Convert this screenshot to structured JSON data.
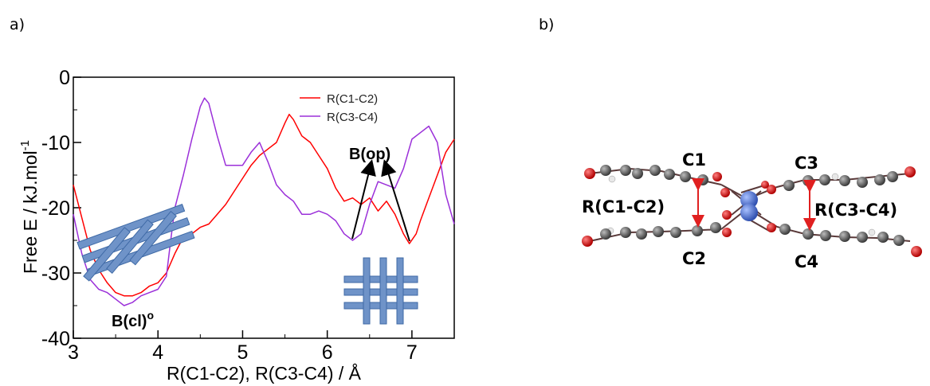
{
  "panels": {
    "a": "a)",
    "b": "b)"
  },
  "chart_data": {
    "type": "line",
    "xlabel": "R(C1-C2), R(C3-C4) / Å",
    "ylabel": "Free E / kJ.mol",
    "ylabel_superscript": "-1",
    "xlim": [
      3,
      7.5
    ],
    "ylim": [
      -40,
      0
    ],
    "x_ticks": [
      "3",
      "4",
      "5",
      "6",
      "7"
    ],
    "y_ticks": [
      "-40",
      "-30",
      "-20",
      "-10",
      "0"
    ],
    "legend_position": "top-right",
    "series": [
      {
        "name": "R(C1-C2)",
        "color": "#ff0000",
        "points": [
          [
            3.0,
            -16.5
          ],
          [
            3.1,
            -21.5
          ],
          [
            3.2,
            -26.5
          ],
          [
            3.3,
            -29.5
          ],
          [
            3.4,
            -31.5
          ],
          [
            3.5,
            -33.0
          ],
          [
            3.6,
            -33.5
          ],
          [
            3.7,
            -33.5
          ],
          [
            3.8,
            -33.0
          ],
          [
            3.9,
            -32.0
          ],
          [
            4.0,
            -31.5
          ],
          [
            4.1,
            -30.0
          ],
          [
            4.2,
            -27.0
          ],
          [
            4.3,
            -24.5
          ],
          [
            4.4,
            -24.0
          ],
          [
            4.5,
            -23.0
          ],
          [
            4.6,
            -22.5
          ],
          [
            4.7,
            -21.0
          ],
          [
            4.8,
            -19.5
          ],
          [
            4.9,
            -17.5
          ],
          [
            5.0,
            -15.5
          ],
          [
            5.1,
            -13.5
          ],
          [
            5.2,
            -12.0
          ],
          [
            5.3,
            -11.0
          ],
          [
            5.4,
            -10.0
          ],
          [
            5.5,
            -7.0
          ],
          [
            5.55,
            -5.7
          ],
          [
            5.6,
            -6.5
          ],
          [
            5.7,
            -9.0
          ],
          [
            5.8,
            -10.0
          ],
          [
            5.9,
            -12.0
          ],
          [
            6.0,
            -14.0
          ],
          [
            6.1,
            -17.0
          ],
          [
            6.2,
            -19.0
          ],
          [
            6.3,
            -18.5
          ],
          [
            6.4,
            -19.5
          ],
          [
            6.5,
            -18.5
          ],
          [
            6.6,
            -20.5
          ],
          [
            6.7,
            -19.0
          ],
          [
            6.8,
            -21.0
          ],
          [
            6.9,
            -24.0
          ],
          [
            6.97,
            -25.5
          ],
          [
            7.05,
            -24.0
          ],
          [
            7.1,
            -22.0
          ],
          [
            7.2,
            -18.5
          ],
          [
            7.3,
            -15.0
          ],
          [
            7.4,
            -11.5
          ],
          [
            7.5,
            -9.5
          ]
        ]
      },
      {
        "name": "R(C3-C4)",
        "color": "#9b30d9",
        "points": [
          [
            3.0,
            -21.0
          ],
          [
            3.1,
            -27.0
          ],
          [
            3.2,
            -31.0
          ],
          [
            3.3,
            -32.5
          ],
          [
            3.4,
            -33.0
          ],
          [
            3.5,
            -34.0
          ],
          [
            3.6,
            -35.0
          ],
          [
            3.7,
            -34.5
          ],
          [
            3.8,
            -33.5
          ],
          [
            3.9,
            -33.0
          ],
          [
            4.0,
            -32.5
          ],
          [
            4.1,
            -30.5
          ],
          [
            4.15,
            -25.0
          ],
          [
            4.2,
            -20.0
          ],
          [
            4.3,
            -15.0
          ],
          [
            4.4,
            -9.5
          ],
          [
            4.5,
            -4.5
          ],
          [
            4.55,
            -3.2
          ],
          [
            4.6,
            -4.0
          ],
          [
            4.7,
            -9.0
          ],
          [
            4.8,
            -13.5
          ],
          [
            4.9,
            -13.5
          ],
          [
            5.0,
            -13.5
          ],
          [
            5.1,
            -11.5
          ],
          [
            5.2,
            -10.0
          ],
          [
            5.3,
            -13.0
          ],
          [
            5.4,
            -16.5
          ],
          [
            5.5,
            -18.0
          ],
          [
            5.6,
            -19.0
          ],
          [
            5.7,
            -21.0
          ],
          [
            5.8,
            -21.0
          ],
          [
            5.9,
            -20.5
          ],
          [
            6.0,
            -21.0
          ],
          [
            6.1,
            -22.0
          ],
          [
            6.2,
            -24.0
          ],
          [
            6.3,
            -25.0
          ],
          [
            6.4,
            -24.0
          ],
          [
            6.5,
            -19.5
          ],
          [
            6.6,
            -16.0
          ],
          [
            6.7,
            -16.5
          ],
          [
            6.8,
            -17.0
          ],
          [
            6.9,
            -14.0
          ],
          [
            7.0,
            -9.5
          ],
          [
            7.1,
            -8.5
          ],
          [
            7.2,
            -7.5
          ],
          [
            7.3,
            -10.0
          ],
          [
            7.4,
            -18.0
          ],
          [
            7.5,
            -22.5
          ]
        ]
      }
    ],
    "annotations": [
      {
        "text": "B(cl)",
        "superscript": "o"
      },
      {
        "text": "B(op)"
      }
    ]
  },
  "molecule": {
    "labels": {
      "c1": "C1",
      "c2": "C2",
      "c3": "C3",
      "c4": "C4",
      "r12": "R(C1-C2)",
      "r34": "R(C3-C4)"
    },
    "colors": {
      "carbon": "#555555",
      "oxygen": "#e00000",
      "hydrogen": "#e8e8e8",
      "metal": "#5b7fd6",
      "arrow": "#e02020"
    }
  }
}
